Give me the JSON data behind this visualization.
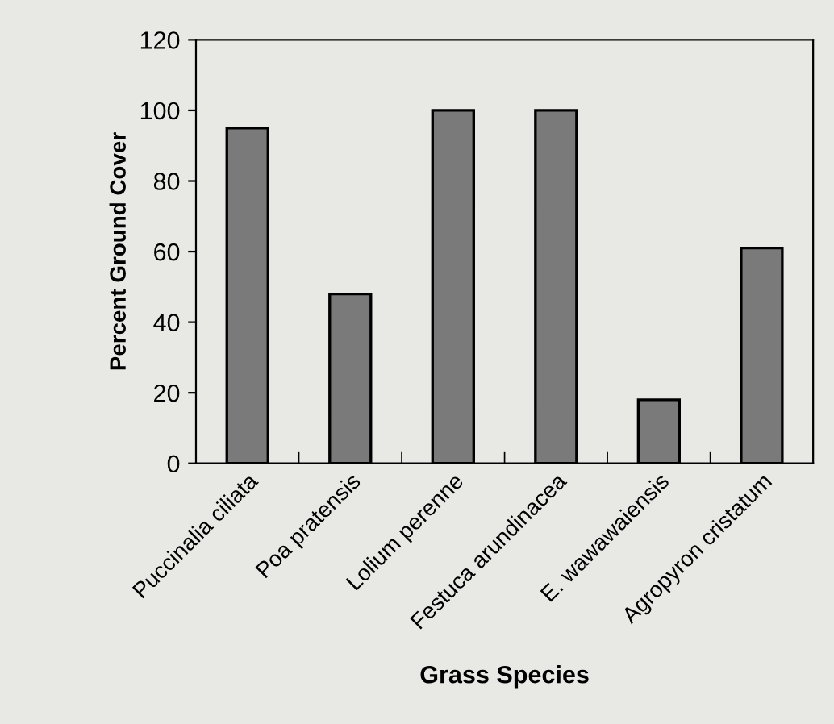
{
  "chart_data": {
    "type": "bar",
    "xlabel": "Grass Species",
    "ylabel": "Percent Ground Cover",
    "categories": [
      "Puccinalia ciliata",
      "Poa pratensis",
      "Lolium perenne",
      "Festuca arundinacea",
      "E. wawawaiensis",
      "Agropyron cristatum"
    ],
    "values": [
      95,
      48,
      100,
      100,
      18,
      61
    ],
    "color": "#7a7a7a",
    "ylim": [
      0,
      120
    ],
    "yticks": [
      0,
      20,
      40,
      60,
      80,
      100,
      120
    ],
    "grid": false,
    "legend": false
  }
}
